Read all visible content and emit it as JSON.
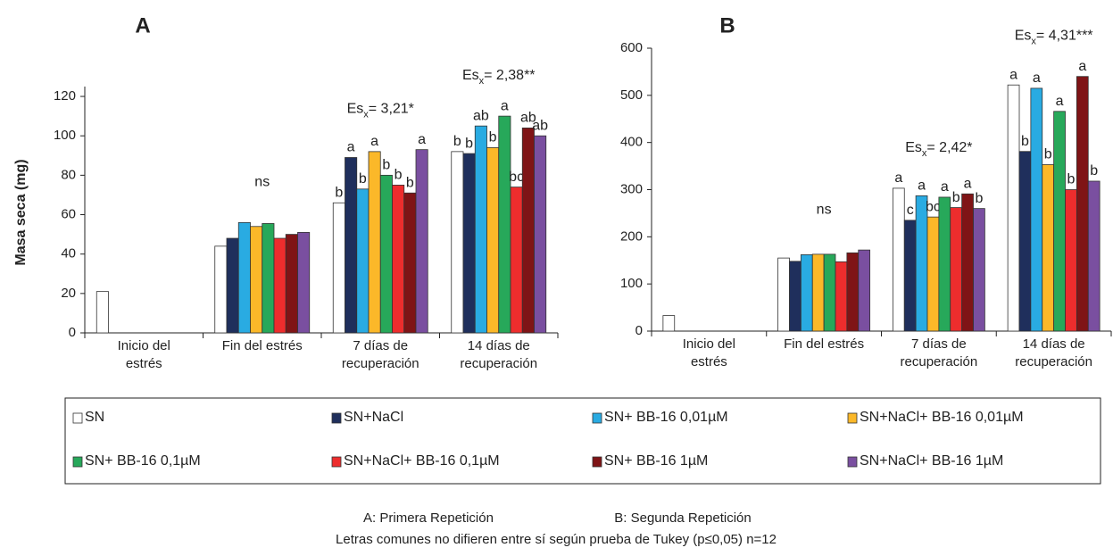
{
  "chart_data": [
    {
      "type": "bar",
      "title": "A",
      "ylabel": "Masa seca (mg)",
      "categories": [
        [
          "Inicio del",
          "estrés"
        ],
        [
          "Fin del estrés"
        ],
        [
          "7 días de",
          "recuperación"
        ],
        [
          "14 días de",
          "recuperación"
        ]
      ],
      "ylim": [
        0,
        125
      ],
      "yticks": [
        0,
        20,
        40,
        60,
        80,
        100,
        120
      ],
      "group_notes": [
        null,
        {
          "text": "ns"
        },
        {
          "main": "Es",
          "sub": "x",
          "rest": "= 3,21*"
        },
        {
          "main": "Es",
          "sub": "x",
          "rest": "= 2,38**"
        }
      ],
      "series": [
        {
          "name": "SN",
          "color": "#ffffff",
          "values": [
            21,
            44,
            66,
            92
          ],
          "letters": [
            null,
            null,
            "b",
            "b"
          ]
        },
        {
          "name": "SN+NaCl",
          "color": "#1f2f5c",
          "values": [
            null,
            48,
            89,
            91
          ],
          "letters": [
            null,
            null,
            "a",
            "b"
          ]
        },
        {
          "name": "SN+ BB-16 0,01µM",
          "color": "#29abe2",
          "values": [
            null,
            56,
            73,
            105
          ],
          "letters": [
            null,
            null,
            "b",
            "ab"
          ]
        },
        {
          "name": "SN+NaCl+ BB-16 0,01µM",
          "color": "#fbb829",
          "values": [
            null,
            54,
            92,
            94
          ],
          "letters": [
            null,
            null,
            "a",
            "b"
          ]
        },
        {
          "name": "SN+ BB-16 0,1µM",
          "color": "#27a85a",
          "values": [
            null,
            55.5,
            80,
            110
          ],
          "letters": [
            null,
            null,
            "b",
            "a"
          ]
        },
        {
          "name": "SN+NaCl+ BB-16 0,1µM",
          "color": "#ed2d2d",
          "values": [
            null,
            48,
            75,
            74
          ],
          "letters": [
            null,
            null,
            "b",
            "bc"
          ]
        },
        {
          "name": "SN+ BB-16 1µM",
          "color": "#7f1416",
          "values": [
            null,
            50,
            71,
            104
          ],
          "letters": [
            null,
            null,
            "b",
            "ab"
          ]
        },
        {
          "name": "SN+NaCl+ BB-16 1µM",
          "color": "#7a4fa0",
          "values": [
            null,
            51,
            93,
            100
          ],
          "letters": [
            null,
            null,
            "a",
            "ab"
          ]
        }
      ]
    },
    {
      "type": "bar",
      "title": "B",
      "categories": [
        [
          "Inicio del",
          "estrés"
        ],
        [
          "Fin del estrés"
        ],
        [
          "7 días de",
          "recuperación"
        ],
        [
          "14 días de",
          "recuperación"
        ]
      ],
      "ylim": [
        0,
        600
      ],
      "yticks": [
        0,
        100,
        200,
        300,
        400,
        500,
        600
      ],
      "group_notes": [
        null,
        {
          "text": "ns"
        },
        {
          "main": "Es",
          "sub": "x",
          "rest": "= 2,42*"
        },
        {
          "main": "Es",
          "sub": "x",
          "rest": "= 4,31***"
        }
      ],
      "series": [
        {
          "color": "#ffffff",
          "values": [
            33,
            155,
            303,
            522
          ],
          "letters": [
            null,
            null,
            "a",
            "a"
          ]
        },
        {
          "color": "#1f2f5c",
          "values": [
            null,
            148,
            235,
            381
          ],
          "letters": [
            null,
            null,
            "c",
            "b"
          ]
        },
        {
          "color": "#29abe2",
          "values": [
            null,
            162,
            287,
            515
          ],
          "letters": [
            null,
            null,
            "a",
            "a"
          ]
        },
        {
          "color": "#fbb829",
          "values": [
            null,
            163,
            242,
            353
          ],
          "letters": [
            null,
            null,
            "bc",
            "b"
          ]
        },
        {
          "color": "#27a85a",
          "values": [
            null,
            163,
            284,
            466
          ],
          "letters": [
            null,
            null,
            "a",
            "a"
          ]
        },
        {
          "color": "#ed2d2d",
          "values": [
            null,
            147,
            262,
            300
          ],
          "letters": [
            null,
            null,
            "b",
            "b"
          ]
        },
        {
          "color": "#7f1416",
          "values": [
            null,
            166,
            291,
            540
          ],
          "letters": [
            null,
            null,
            "a",
            "a"
          ]
        },
        {
          "color": "#7a4fa0",
          "values": [
            null,
            172,
            260,
            318
          ],
          "letters": [
            null,
            null,
            "b",
            "b"
          ]
        }
      ]
    }
  ],
  "captions": {
    "a": "A: Primera Repetición",
    "b": "B: Segunda Repetición",
    "note": "Letras comunes no difieren entre sí según prueba de Tukey (p≤0,05) n=12"
  }
}
